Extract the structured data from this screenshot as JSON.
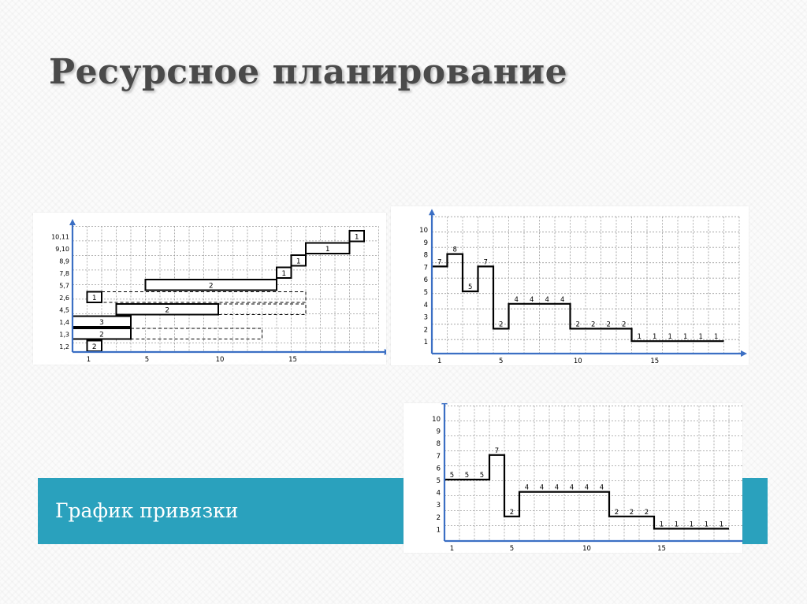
{
  "slide": {
    "title": "Ресурсное планирование",
    "banner_text": "График привязки",
    "banner_color": "#2aa1bd",
    "accent_axis_color": "#3b6fc4"
  },
  "chart_data": [
    {
      "type": "gantt",
      "title": "",
      "x_ticks": [
        1,
        5,
        10,
        15
      ],
      "xlim": [
        0,
        18
      ],
      "rows": [
        "1,2",
        "1,3",
        "1,4",
        "4,5",
        "2,6",
        "5,7",
        "7,8",
        "8,9",
        "9,10",
        "10,11"
      ],
      "tasks": [
        {
          "row": "1,2",
          "start": 1,
          "end": 2,
          "label": "2"
        },
        {
          "row": "1,3",
          "start": 0,
          "end": 4,
          "label": "2"
        },
        {
          "row": "1,4",
          "start": 0,
          "end": 4,
          "label": "3"
        },
        {
          "row": "4,5",
          "start": 3,
          "end": 10,
          "label": "2"
        },
        {
          "row": "2,6",
          "start": 1,
          "end": 2,
          "label": "1"
        },
        {
          "row": "5,7",
          "start": 5,
          "end": 14,
          "label": "2"
        },
        {
          "row": "7,8",
          "start": 14,
          "end": 15,
          "label": "1"
        },
        {
          "row": "8,9",
          "start": 15,
          "end": 16,
          "label": "1"
        },
        {
          "row": "9,10",
          "start": 16,
          "end": 19,
          "label": "1"
        },
        {
          "row": "10,11",
          "start": 19,
          "end": 20,
          "label": "1"
        }
      ],
      "reserves": [
        {
          "row": "1,3",
          "start": 4,
          "end": 13
        },
        {
          "row": "4,5",
          "start": 10,
          "end": 16
        },
        {
          "row": "2,6",
          "start": 2,
          "end": 16
        }
      ]
    },
    {
      "type": "step",
      "title": "",
      "y_ticks": [
        1,
        2,
        3,
        4,
        5,
        6,
        7,
        8,
        9,
        10
      ],
      "x_ticks": [
        1,
        5,
        10,
        15
      ],
      "ylim": [
        0,
        11
      ],
      "xlim": [
        0,
        20
      ],
      "values": [
        7,
        8,
        5,
        7,
        2,
        4,
        4,
        4,
        4,
        2,
        2,
        2,
        2,
        1,
        1,
        1,
        1,
        1,
        1
      ],
      "labels": [
        "7",
        "8",
        "5",
        "7",
        "2",
        "4",
        "4",
        "4",
        "4",
        "2",
        "2",
        "2",
        "2",
        "1",
        "1",
        "1",
        "1",
        "1",
        "1"
      ]
    },
    {
      "type": "step",
      "title": "",
      "y_ticks": [
        1,
        2,
        3,
        4,
        5,
        6,
        7,
        8,
        9,
        10
      ],
      "x_ticks": [
        1,
        5,
        10,
        15
      ],
      "ylim": [
        0,
        11
      ],
      "xlim": [
        0,
        20
      ],
      "values": [
        5,
        5,
        5,
        7,
        2,
        4,
        4,
        4,
        4,
        4,
        4,
        2,
        2,
        2,
        1,
        1,
        1,
        1,
        1
      ],
      "labels": [
        "5",
        "5",
        "5",
        "7",
        "2",
        "4",
        "4",
        "4",
        "4",
        "4",
        "4",
        "2",
        "2",
        "2",
        "1",
        "1",
        "1",
        "1",
        "1"
      ]
    }
  ]
}
